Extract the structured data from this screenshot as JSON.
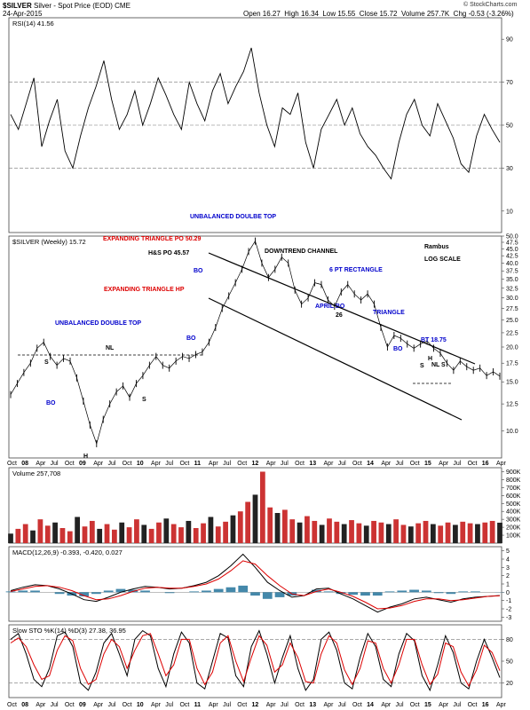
{
  "header": {
    "symbol": "$SILVER",
    "description": "Silver - Spot Price (EOD)",
    "exchange": "CME",
    "date": "24-Apr-2015",
    "open": "Open 16.27",
    "high": "High 16.34",
    "low": "Low 15.55",
    "close": "Close 15.72",
    "volume": "Volume 257.7K",
    "change": "Chg -0.53 (-3.26%)",
    "watermark": "© StockCharts.com"
  },
  "x_axis_labels": [
    "Oct",
    "08",
    "Apr",
    "Jul",
    "Oct",
    "09",
    "Apr",
    "Jul",
    "Oct",
    "10",
    "Apr",
    "Jul",
    "Oct",
    "11",
    "Apr",
    "Jul",
    "Oct",
    "12",
    "Apr",
    "Jul",
    "Oct",
    "13",
    "Apr",
    "Jul",
    "Oct",
    "14",
    "Apr",
    "Jul",
    "Oct",
    "15",
    "Apr",
    "Jul",
    "Oct",
    "16",
    "Apr"
  ],
  "chart_data": [
    {
      "type": "line",
      "panel": "rsi",
      "label": "RSI(14) 41.56",
      "y_ticks": [
        10,
        30,
        50,
        70,
        90
      ],
      "ylim": [
        0,
        100
      ],
      "reference_lines": [
        30,
        50,
        70
      ],
      "series": [
        {
          "name": "RSI(14)",
          "values": [
            55,
            48,
            60,
            72,
            40,
            52,
            62,
            38,
            30,
            45,
            58,
            68,
            80,
            62,
            48,
            55,
            66,
            50,
            60,
            72,
            64,
            55,
            48,
            70,
            60,
            52,
            66,
            74,
            60,
            68,
            75,
            86,
            65,
            50,
            40,
            58,
            55,
            65,
            42,
            30,
            48,
            55,
            62,
            50,
            58,
            46,
            40,
            36,
            30,
            25,
            42,
            55,
            62,
            50,
            45,
            60,
            52,
            44,
            32,
            28,
            45,
            55,
            48,
            42
          ]
        }
      ]
    },
    {
      "type": "line",
      "panel": "price",
      "label": "$SILVER (Weekly) 15.72",
      "y_scale": "log",
      "y_ticks": [
        10.0,
        12.5,
        15.0,
        17.5,
        20.0,
        22.5,
        25.0,
        27.5,
        30.0,
        32.5,
        35.0,
        37.5,
        40.0,
        42.5,
        45.0,
        47.5,
        50.0
      ],
      "y_tick_labels": [
        "10.0",
        "12.5",
        "15.0",
        "17.5",
        "20.0",
        "22.5",
        "25.0",
        "27.5",
        "30.0",
        "32.5",
        "35.0",
        "37.5",
        "40.0",
        "42.5",
        "45.0",
        "47.5",
        "50.0"
      ],
      "ylim": [
        8.0,
        50.0
      ],
      "series": [
        {
          "name": "$SILVER",
          "values": [
            13.5,
            14.8,
            16.2,
            17.5,
            19.8,
            20.8,
            18.5,
            17.2,
            18.2,
            17.8,
            15.5,
            12.8,
            10.5,
            9.0,
            11.0,
            12.5,
            13.8,
            14.5,
            13.2,
            14.8,
            15.8,
            17.2,
            18.5,
            17.2,
            16.8,
            17.8,
            18.5,
            18.2,
            18.8,
            19.2,
            20.8,
            23.5,
            27.5,
            30.5,
            34.0,
            38.0,
            44.0,
            48.0,
            40.0,
            35.5,
            38.0,
            42.0,
            40.0,
            32.0,
            28.5,
            30.0,
            34.0,
            33.5,
            29.5,
            28.0,
            31.5,
            33.5,
            31.0,
            29.5,
            31.0,
            28.5,
            23.5,
            20.0,
            22.0,
            21.5,
            20.5,
            19.8,
            20.5,
            21.0,
            19.8,
            19.0,
            17.5,
            16.5,
            17.8,
            17.0,
            16.5,
            16.8,
            15.8,
            16.3,
            15.72
          ]
        }
      ],
      "annotations": [
        "UNBALANCED DOULBE TOP",
        "EXPANDING TRIANGLE PO 50.29",
        "H&S PO 45.57",
        "DOWNTREND CHANNEL",
        "Rambus",
        "LOG SCALE",
        "6 PT RECTANGLE",
        "TRIANGLE",
        "APRIL BO",
        "26",
        "BT 18.75",
        "BO",
        "BO",
        "BO",
        "BO",
        "NL",
        "NL",
        "UNBALANCED DOUBLE TOP",
        "EXPANDING TRIANGLE HP",
        "S",
        "S",
        "H",
        "S",
        "H",
        "S"
      ]
    },
    {
      "type": "bar",
      "panel": "volume",
      "label": "Volume 257,708",
      "y_ticks": [
        100000,
        200000,
        300000,
        400000,
        500000,
        600000,
        700000,
        800000,
        900000
      ],
      "y_tick_labels": [
        "100K",
        "200K",
        "300K",
        "400K",
        "500K",
        "600K",
        "700K",
        "800K",
        "900K"
      ],
      "ylim": [
        0,
        950000
      ],
      "series": [
        {
          "name": "Volume",
          "values": [
            120000,
            180000,
            240000,
            160000,
            300000,
            220000,
            260000,
            190000,
            150000,
            330000,
            210000,
            280000,
            180000,
            240000,
            170000,
            260000,
            200000,
            300000,
            230000,
            180000,
            260000,
            310000,
            240000,
            200000,
            280000,
            190000,
            250000,
            330000,
            210000,
            270000,
            350000,
            400000,
            520000,
            610000,
            900000,
            450000,
            380000,
            420000,
            300000,
            260000,
            340000,
            280000,
            230000,
            310000,
            270000,
            240000,
            290000,
            250000,
            220000,
            280000,
            260000,
            240000,
            300000,
            230000,
            210000,
            250000,
            280000,
            240000,
            220000,
            260000,
            230000,
            270000,
            250000,
            240000,
            260000,
            280000,
            257708
          ]
        }
      ]
    },
    {
      "type": "line",
      "panel": "macd",
      "label": "MACD(12,26,9) -0.393, -0.420, 0.027",
      "y_ticks": [
        -3,
        -2,
        -1,
        0,
        1,
        2,
        3,
        4,
        5
      ],
      "ylim": [
        -3.5,
        5.5
      ],
      "series": [
        {
          "name": "MACD",
          "values": [
            0.2,
            0.6,
            0.9,
            0.8,
            0.4,
            -0.2,
            -0.9,
            -1.1,
            -0.6,
            0.0,
            0.4,
            0.7,
            0.6,
            0.4,
            0.5,
            0.8,
            1.2,
            2.0,
            3.2,
            4.6,
            3.0,
            1.2,
            0.2,
            -0.6,
            -0.4,
            0.4,
            0.5,
            -0.2,
            -0.8,
            -1.6,
            -2.4,
            -1.8,
            -1.4,
            -0.8,
            -0.6,
            -0.9,
            -1.2,
            -0.8,
            -0.6,
            -0.5,
            -0.393
          ]
        },
        {
          "name": "Signal",
          "values": [
            0.1,
            0.4,
            0.7,
            0.8,
            0.6,
            0.2,
            -0.4,
            -0.9,
            -0.8,
            -0.4,
            0.1,
            0.5,
            0.6,
            0.5,
            0.5,
            0.7,
            1.0,
            1.6,
            2.6,
            3.8,
            3.4,
            2.0,
            0.8,
            -0.2,
            -0.4,
            0.1,
            0.4,
            0.0,
            -0.5,
            -1.2,
            -2.0,
            -1.9,
            -1.6,
            -1.1,
            -0.8,
            -0.8,
            -1.0,
            -0.9,
            -0.7,
            -0.5,
            -0.42
          ]
        }
      ],
      "histogram": [
        0.1,
        0.2,
        0.2,
        0.0,
        -0.2,
        -0.4,
        -0.5,
        -0.2,
        0.2,
        0.4,
        0.3,
        0.2,
        0.0,
        -0.1,
        0.0,
        0.1,
        0.2,
        0.4,
        0.6,
        0.8,
        -0.4,
        -0.8,
        -0.6,
        -0.4,
        0.0,
        0.3,
        0.1,
        -0.2,
        -0.3,
        -0.4,
        -0.4,
        0.1,
        0.2,
        0.3,
        0.2,
        -0.1,
        -0.2,
        0.1,
        0.1,
        0.0,
        0.027
      ]
    },
    {
      "type": "line",
      "panel": "stochastic",
      "label": "Slow STO %K(14) %D(3) 27.38, 36.95",
      "y_ticks": [
        20,
        50,
        80
      ],
      "ylim": [
        0,
        100
      ],
      "reference_lines": [
        20,
        80
      ],
      "series": [
        {
          "name": "%K",
          "values": [
            80,
            88,
            60,
            25,
            15,
            40,
            85,
            90,
            70,
            20,
            10,
            35,
            75,
            88,
            60,
            30,
            80,
            92,
            85,
            40,
            15,
            60,
            90,
            75,
            20,
            12,
            50,
            88,
            82,
            30,
            15,
            70,
            92,
            60,
            20,
            55,
            85,
            40,
            10,
            25,
            80,
            90,
            65,
            20,
            12,
            55,
            88,
            70,
            25,
            15,
            60,
            88,
            78,
            30,
            10,
            45,
            85,
            62,
            20,
            12,
            50,
            80,
            55,
            27.38
          ]
        },
        {
          "name": "%D",
          "values": [
            75,
            82,
            70,
            45,
            25,
            30,
            65,
            85,
            78,
            40,
            18,
            25,
            60,
            80,
            70,
            40,
            65,
            85,
            88,
            60,
            30,
            45,
            80,
            80,
            40,
            18,
            35,
            75,
            85,
            50,
            22,
            55,
            85,
            72,
            35,
            45,
            75,
            55,
            22,
            20,
            60,
            85,
            75,
            38,
            18,
            40,
            78,
            75,
            40,
            20,
            45,
            80,
            80,
            45,
            18,
            32,
            75,
            70,
            35,
            16,
            38,
            72,
            62,
            36.95
          ]
        }
      ]
    }
  ]
}
